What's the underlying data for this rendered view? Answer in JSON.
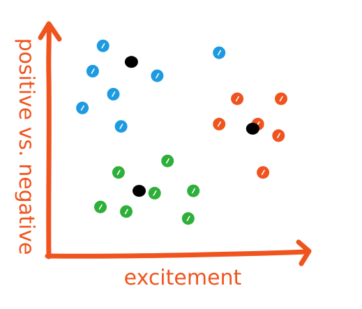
{
  "chart_data": {
    "type": "scatter",
    "xlabel": "excitement",
    "ylabel": "positive vs. negative",
    "axis_color": "#F0541E",
    "grid": false,
    "xlim": [
      0,
      100
    ],
    "ylim": [
      0,
      100
    ],
    "series": [
      {
        "color": "#1E9BE0",
        "points": [
          {
            "x": 21,
            "y": 91
          },
          {
            "x": 66,
            "y": 88
          },
          {
            "x": 17,
            "y": 80
          },
          {
            "x": 42,
            "y": 78
          },
          {
            "x": 25,
            "y": 70
          },
          {
            "x": 13,
            "y": 64
          },
          {
            "x": 28,
            "y": 56
          }
        ]
      },
      {
        "color": "#F0541E",
        "points": [
          {
            "x": 73,
            "y": 68
          },
          {
            "x": 90,
            "y": 68
          },
          {
            "x": 66,
            "y": 57
          },
          {
            "x": 81,
            "y": 57
          },
          {
            "x": 89,
            "y": 52
          },
          {
            "x": 83,
            "y": 36
          }
        ]
      },
      {
        "color": "#2EAF3A",
        "points": [
          {
            "x": 46,
            "y": 41
          },
          {
            "x": 27,
            "y": 36
          },
          {
            "x": 56,
            "y": 28
          },
          {
            "x": 41,
            "y": 27
          },
          {
            "x": 20,
            "y": 21
          },
          {
            "x": 30,
            "y": 19
          },
          {
            "x": 54,
            "y": 16
          }
        ]
      },
      {
        "color": "#000000",
        "points": [
          {
            "x": 32,
            "y": 84
          },
          {
            "x": 79,
            "y": 55
          },
          {
            "x": 35,
            "y": 28
          }
        ]
      }
    ]
  }
}
